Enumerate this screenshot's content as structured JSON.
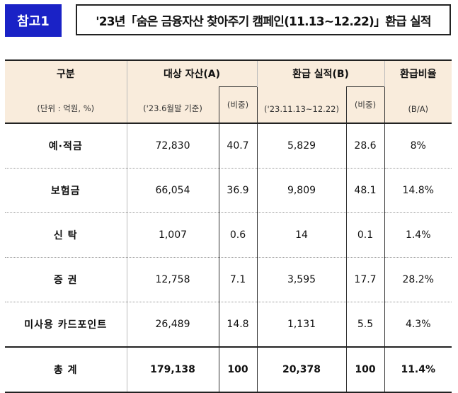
{
  "header": {
    "badge": "참고1",
    "title": "'23년「숨은 금융자산 찾아주기 캠페인(11.13~12.22)」환급 실적"
  },
  "table": {
    "col_category": "구분",
    "col_category_unit": "(단위 : 억원, %)",
    "col_target": "대상 자산(A)",
    "col_target_sub": "('23.6월말 기준)",
    "col_ratio1": "(비중)",
    "col_refund": "환급 실적(B)",
    "col_refund_sub": "('23.11.13~12.22)",
    "col_ratio2": "(비중)",
    "col_rate": "환급비율",
    "col_rate_sub": "(B/A)",
    "rows": [
      {
        "label": "예·적금",
        "a": "72,830",
        "a_share": "40.7",
        "b": "5,829",
        "b_share": "28.6",
        "rate": "8%"
      },
      {
        "label": "보험금",
        "a": "66,054",
        "a_share": "36.9",
        "b": "9,809",
        "b_share": "48.1",
        "rate": "14.8%"
      },
      {
        "label": "신  탁",
        "a": "1,007",
        "a_share": "0.6",
        "b": "14",
        "b_share": "0.1",
        "rate": "1.4%"
      },
      {
        "label": "증  권",
        "a": "12,758",
        "a_share": "7.1",
        "b": "3,595",
        "b_share": "17.7",
        "rate": "28.2%"
      },
      {
        "label": "미사용 카드포인트",
        "a": "26,489",
        "a_share": "14.8",
        "b": "1,131",
        "b_share": "5.5",
        "rate": "4.3%"
      }
    ],
    "total": {
      "label": "총  계",
      "a": "179,138",
      "a_share": "100",
      "b": "20,378",
      "b_share": "100",
      "rate": "11.4%"
    }
  }
}
